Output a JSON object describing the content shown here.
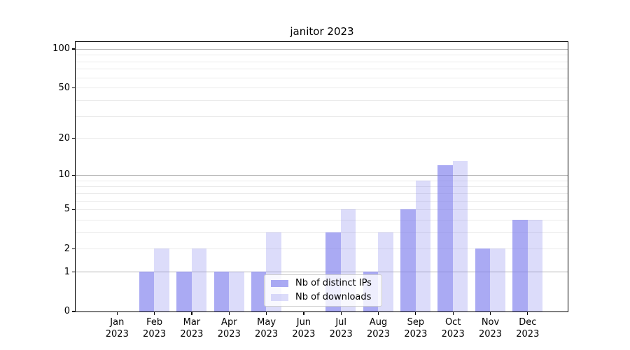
{
  "chart_data": {
    "type": "bar",
    "title": "janitor 2023",
    "categories": [
      "Jan 2023",
      "Feb 2023",
      "Mar 2023",
      "Apr 2023",
      "May 2023",
      "Jun 2023",
      "Jul 2023",
      "Aug 2023",
      "Sep 2023",
      "Oct 2023",
      "Nov 2023",
      "Dec 2023"
    ],
    "series": [
      {
        "name": "Nb of distinct IPs",
        "color": "rgba(124,124,237,0.65)",
        "values": [
          0,
          1,
          1,
          1,
          1,
          0,
          3,
          1,
          5,
          12,
          2,
          4
        ]
      },
      {
        "name": "Nb of downloads",
        "color": "rgba(124,124,237,0.27)",
        "values": [
          0,
          2,
          2,
          1,
          3,
          0,
          5,
          3,
          9,
          13,
          2,
          4
        ]
      }
    ],
    "yscale": "log1p",
    "ylim": [
      0,
      100
    ],
    "yticks": [
      0,
      1,
      2,
      5,
      10,
      20,
      50,
      100
    ],
    "major_gridlines": [
      1,
      10,
      100
    ],
    "minor_gridlines": [
      2,
      3,
      4,
      5,
      6,
      7,
      8,
      9,
      20,
      30,
      40,
      50,
      60,
      70,
      80,
      90
    ],
    "grid": true,
    "legend_position": "lower center",
    "xlabel": "",
    "ylabel": ""
  },
  "colors": {
    "bar_distinct_ips": "rgba(124,124,237,0.65)",
    "bar_downloads": "rgba(124,124,237,0.27)",
    "major_grid": "#b4b4b4",
    "minor_grid": "#ebebeb",
    "axis": "#000000",
    "legend_border": "#cccccc",
    "background": "#ffffff"
  }
}
